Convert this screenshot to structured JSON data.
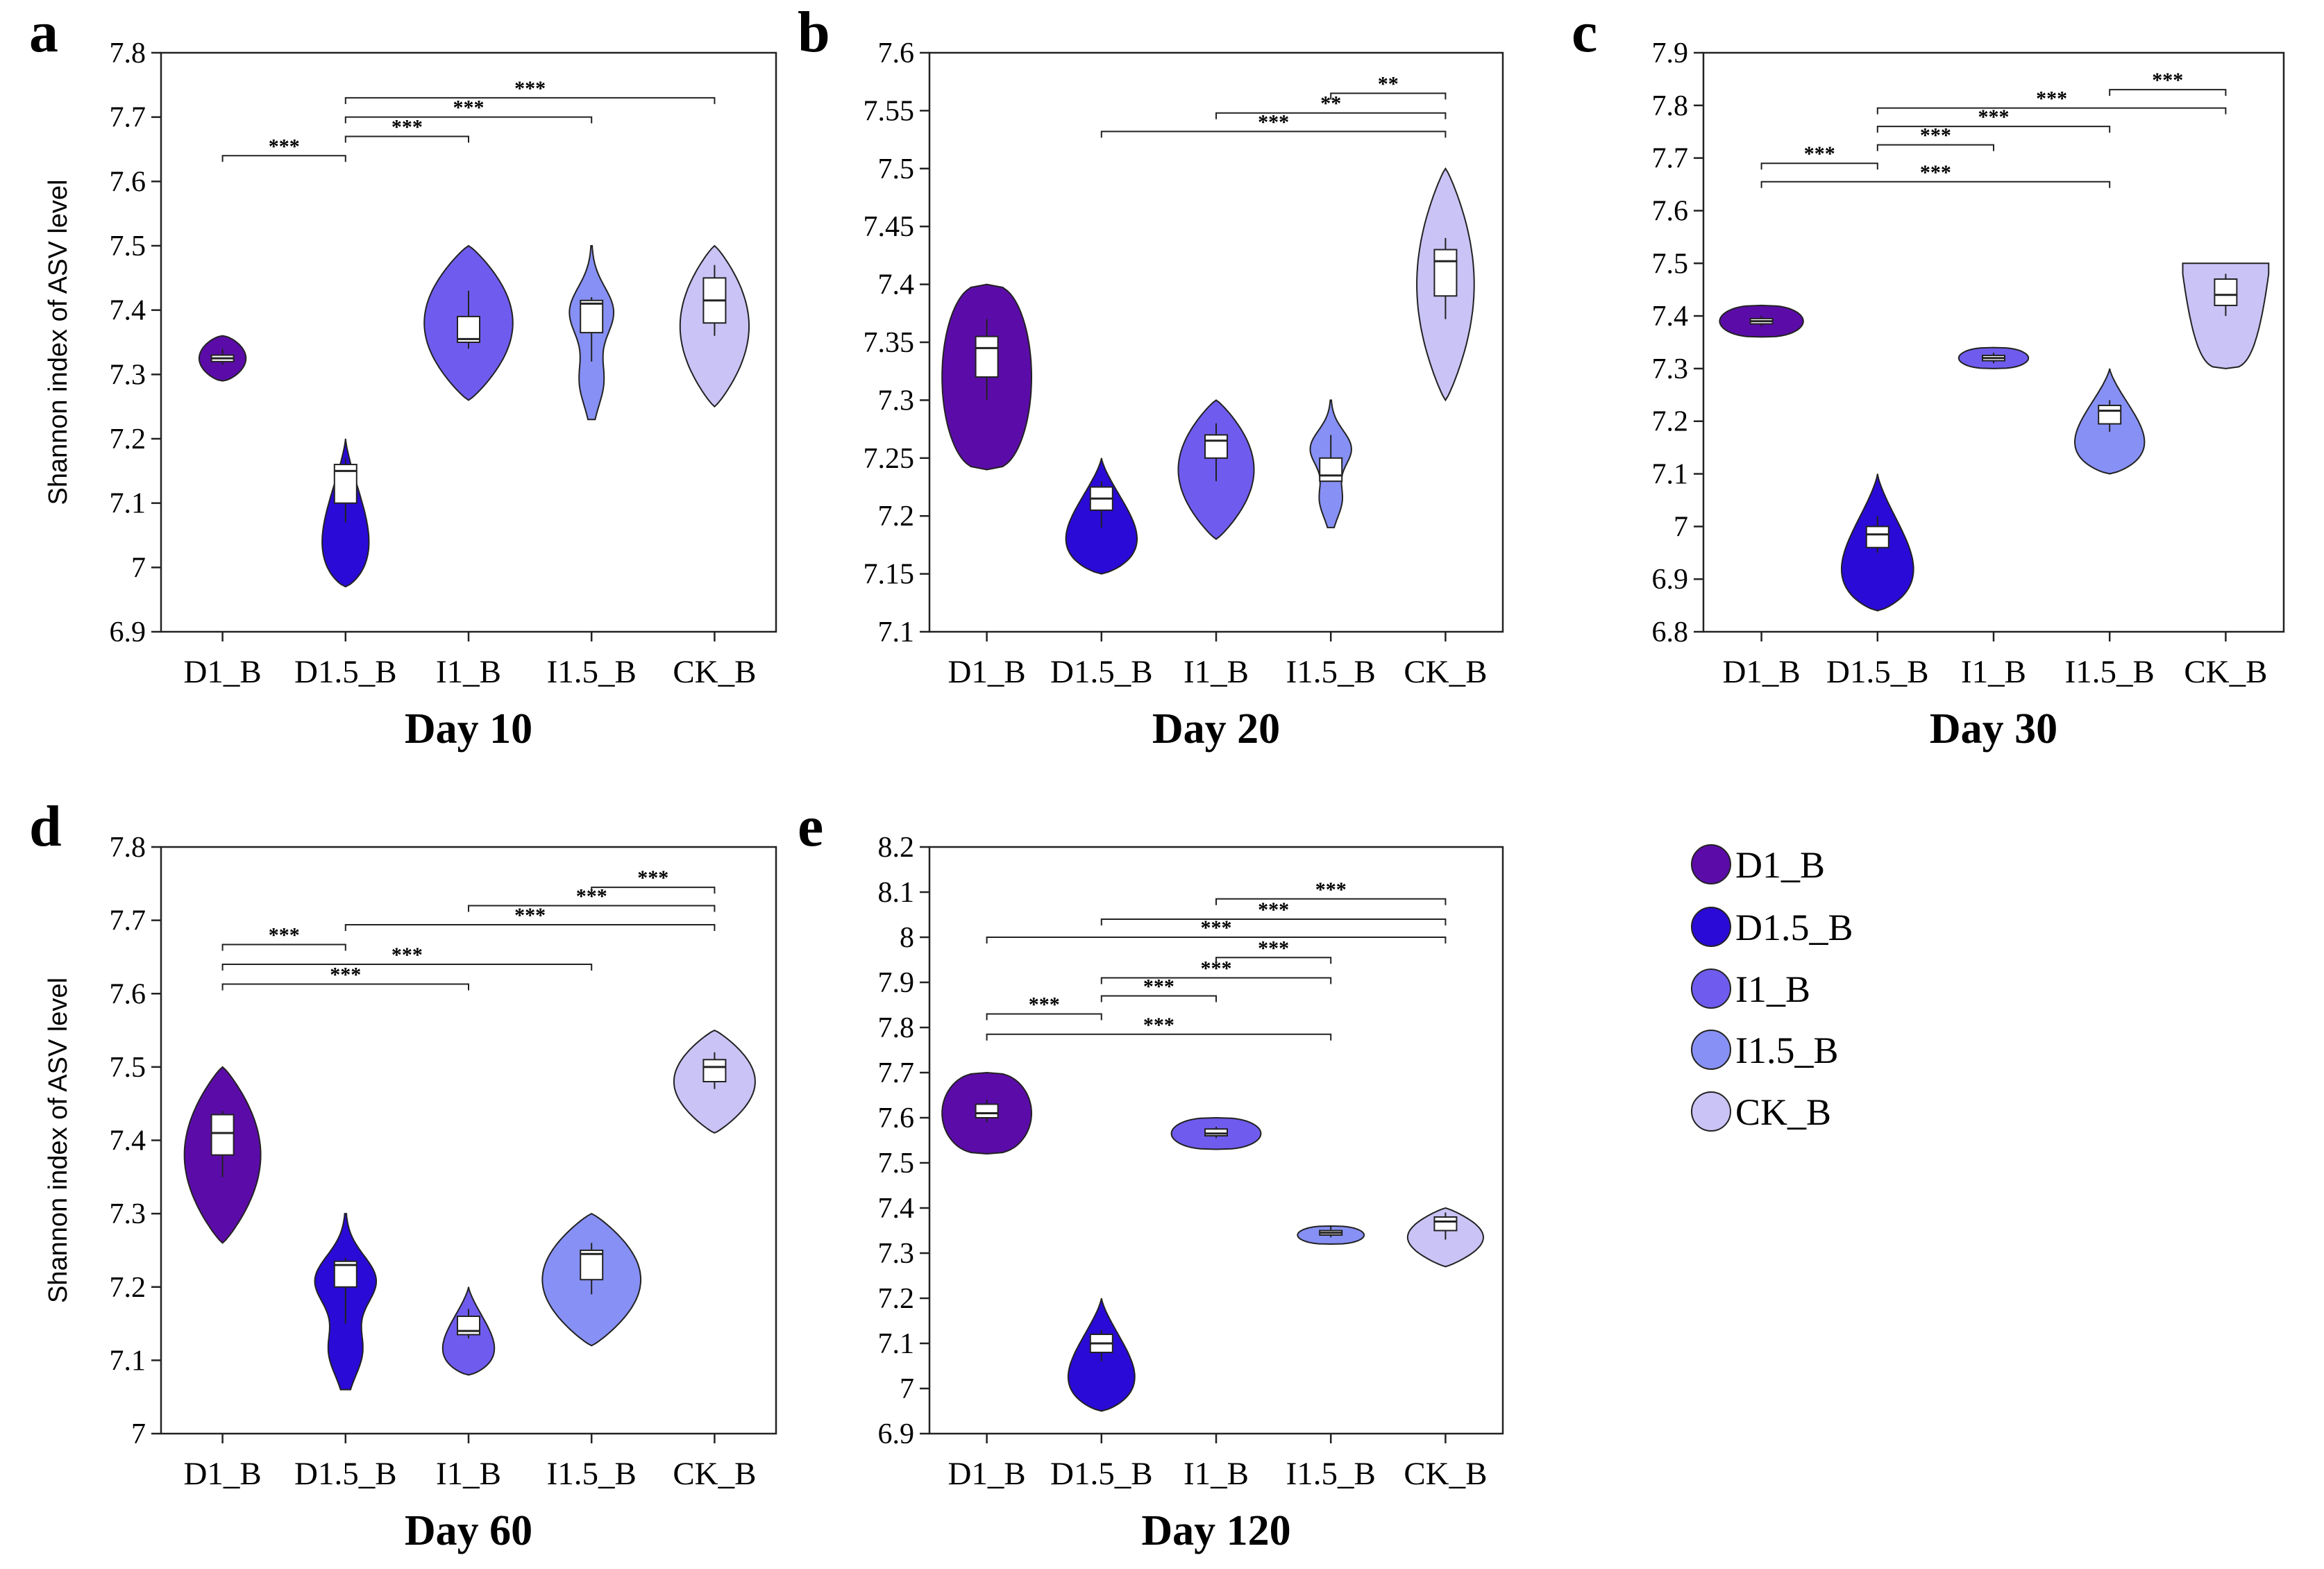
{
  "figure": {
    "ylabel": "Shannon index of ASV level",
    "groups": [
      "D1_B",
      "D1.5_B",
      "I1_B",
      "I1.5_B",
      "CK_B"
    ],
    "colors": {
      "D1_B": "#5b0ca8",
      "D1.5_B": "#2a0ad6",
      "I1_B": "#6f5cee",
      "I1.5_B": "#8790f4",
      "CK_B": "#c9c3f6"
    }
  },
  "legend": [
    {
      "label": "D1_B",
      "color": "#5b0ca8"
    },
    {
      "label": "D1.5_B",
      "color": "#2a0ad6"
    },
    {
      "label": "I1_B",
      "color": "#6f5cee"
    },
    {
      "label": "I1.5_B",
      "color": "#8790f4"
    },
    {
      "label": "CK_B",
      "color": "#c9c3f6"
    }
  ],
  "chart_data": [
    {
      "panel": "a",
      "type": "violin",
      "title": "Day 10",
      "ylabel": "Shannon index of ASV level",
      "ylim": [
        6.9,
        7.8
      ],
      "yticks": [
        "6.9",
        "7",
        "7.1",
        "7.2",
        "7.3",
        "7.4",
        "7.5",
        "7.6",
        "7.7",
        "7.8"
      ],
      "categories": [
        "D1_B",
        "D1.5_B",
        "I1_B",
        "I1.5_B",
        "CK_B"
      ],
      "series": [
        {
          "name": "D1_B",
          "vmin": 7.29,
          "vmax": 7.36,
          "maxw": 0.38,
          "shape": "s",
          "q1": 7.32,
          "median": 7.325,
          "q3": 7.33,
          "wlo": 7.315,
          "whi": 7.34
        },
        {
          "name": "D1.5_B",
          "vmin": 6.97,
          "vmax": 7.2,
          "maxw": 0.38,
          "shape": "tear",
          "q1": 7.1,
          "median": 7.15,
          "q3": 7.16,
          "wlo": 7.07,
          "whi": 7.17
        },
        {
          "name": "I1_B",
          "vmin": 7.26,
          "vmax": 7.5,
          "maxw": 0.72,
          "shape": "round",
          "q1": 7.35,
          "median": 7.355,
          "q3": 7.39,
          "wlo": 7.34,
          "whi": 7.43
        },
        {
          "name": "I1.5_B",
          "vmin": 7.23,
          "vmax": 7.5,
          "maxw": 0.36,
          "shape": "bimodal",
          "q1": 7.365,
          "median": 7.41,
          "q3": 7.415,
          "wlo": 7.32,
          "whi": 7.42
        },
        {
          "name": "CK_B",
          "vmin": 7.25,
          "vmax": 7.5,
          "maxw": 0.56,
          "shape": "round",
          "q1": 7.38,
          "median": 7.415,
          "q3": 7.45,
          "wlo": 7.36,
          "whi": 7.47
        }
      ],
      "brackets": [
        {
          "from": "D1_B",
          "to": "D1.5_B",
          "y": 7.64,
          "label": "***"
        },
        {
          "from": "D1.5_B",
          "to": "I1_B",
          "y": 7.67,
          "label": "***"
        },
        {
          "from": "D1.5_B",
          "to": "I1.5_B",
          "y": 7.7,
          "label": "***"
        },
        {
          "from": "D1.5_B",
          "to": "CK_B",
          "y": 7.73,
          "label": "***"
        }
      ]
    },
    {
      "panel": "b",
      "type": "violin",
      "title": "Day 20",
      "ylim": [
        7.1,
        7.6
      ],
      "yticks": [
        "7.1",
        "7.15",
        "7.2",
        "7.25",
        "7.3",
        "7.35",
        "7.4",
        "7.45",
        "7.5",
        "7.55",
        "7.6"
      ],
      "categories": [
        "D1_B",
        "D1.5_B",
        "I1_B",
        "I1.5_B",
        "CK_B"
      ],
      "series": [
        {
          "name": "D1_B",
          "vmin": 7.24,
          "vmax": 7.4,
          "maxw": 0.78,
          "shape": "flat",
          "q1": 7.32,
          "median": 7.345,
          "q3": 7.355,
          "wlo": 7.3,
          "whi": 7.37
        },
        {
          "name": "D1.5_B",
          "vmin": 7.15,
          "vmax": 7.25,
          "maxw": 0.62,
          "shape": "tear",
          "q1": 7.205,
          "median": 7.215,
          "q3": 7.225,
          "wlo": 7.19,
          "whi": 7.23
        },
        {
          "name": "I1_B",
          "vmin": 7.18,
          "vmax": 7.3,
          "maxw": 0.66,
          "shape": "round",
          "q1": 7.25,
          "median": 7.265,
          "q3": 7.27,
          "wlo": 7.23,
          "whi": 7.28
        },
        {
          "name": "I1.5_B",
          "vmin": 7.19,
          "vmax": 7.3,
          "maxw": 0.36,
          "shape": "bimodal",
          "q1": 7.23,
          "median": 7.235,
          "q3": 7.25,
          "wlo": 7.23,
          "whi": 7.27
        },
        {
          "name": "CK_B",
          "vmin": 7.3,
          "vmax": 7.5,
          "maxw": 0.5,
          "shape": "round",
          "q1": 7.39,
          "median": 7.42,
          "q3": 7.43,
          "wlo": 7.37,
          "whi": 7.44
        }
      ],
      "brackets": [
        {
          "from": "D1.5_B",
          "to": "CK_B",
          "y": 7.532,
          "label": "***"
        },
        {
          "from": "I1_B",
          "to": "CK_B",
          "y": 7.548,
          "label": "**"
        },
        {
          "from": "I1.5_B",
          "to": "CK_B",
          "y": 7.565,
          "label": "**"
        }
      ]
    },
    {
      "panel": "c",
      "type": "violin",
      "title": "Day 30",
      "ylim": [
        6.8,
        7.9
      ],
      "yticks": [
        "6.8",
        "6.9",
        "7",
        "7.1",
        "7.2",
        "7.3",
        "7.4",
        "7.5",
        "7.6",
        "7.7",
        "7.8",
        "7.9"
      ],
      "categories": [
        "D1_B",
        "D1.5_B",
        "I1_B",
        "I1.5_B",
        "CK_B"
      ],
      "series": [
        {
          "name": "D1_B",
          "vmin": 7.36,
          "vmax": 7.42,
          "maxw": 0.72,
          "shape": "flat",
          "q1": 7.385,
          "median": 7.39,
          "q3": 7.395,
          "wlo": 7.38,
          "whi": 7.4
        },
        {
          "name": "D1.5_B",
          "vmin": 6.84,
          "vmax": 7.1,
          "maxw": 0.62,
          "shape": "tear",
          "q1": 6.96,
          "median": 6.985,
          "q3": 7.0,
          "wlo": 6.95,
          "whi": 7.02
        },
        {
          "name": "I1_B",
          "vmin": 7.3,
          "vmax": 7.34,
          "maxw": 0.6,
          "shape": "flat",
          "q1": 7.315,
          "median": 7.32,
          "q3": 7.325,
          "wlo": 7.31,
          "whi": 7.33
        },
        {
          "name": "I1.5_B",
          "vmin": 7.1,
          "vmax": 7.3,
          "maxw": 0.6,
          "shape": "tear",
          "q1": 7.195,
          "median": 7.22,
          "q3": 7.23,
          "wlo": 7.18,
          "whi": 7.24
        },
        {
          "name": "CK_B",
          "vmin": 7.3,
          "vmax": 7.5,
          "maxw": 0.74,
          "shape": "flattop",
          "q1": 7.42,
          "median": 7.44,
          "q3": 7.47,
          "wlo": 7.4,
          "whi": 7.48
        }
      ],
      "brackets": [
        {
          "from": "D1_B",
          "to": "I1.5_B",
          "y": 7.655,
          "label": "***"
        },
        {
          "from": "D1_B",
          "to": "D1.5_B",
          "y": 7.69,
          "label": "***"
        },
        {
          "from": "D1.5_B",
          "to": "I1_B",
          "y": 7.725,
          "label": "***"
        },
        {
          "from": "D1.5_B",
          "to": "I1.5_B",
          "y": 7.76,
          "label": "***"
        },
        {
          "from": "D1.5_B",
          "to": "CK_B",
          "y": 7.795,
          "label": "***"
        },
        {
          "from": "I1.5_B",
          "to": "CK_B",
          "y": 7.83,
          "label": "***"
        }
      ]
    },
    {
      "panel": "d",
      "type": "violin",
      "title": "Day 60",
      "ylabel": "Shannon index of ASV level",
      "ylim": [
        7.0,
        7.8
      ],
      "yticks": [
        "7",
        "7.1",
        "7.2",
        "7.3",
        "7.4",
        "7.5",
        "7.6",
        "7.7",
        "7.8"
      ],
      "categories": [
        "D1_B",
        "D1.5_B",
        "I1_B",
        "I1.5_B",
        "CK_B"
      ],
      "series": [
        {
          "name": "D1_B",
          "vmin": 7.26,
          "vmax": 7.5,
          "maxw": 0.62,
          "shape": "round",
          "q1": 7.38,
          "median": 7.41,
          "q3": 7.435,
          "wlo": 7.35,
          "whi": 7.44
        },
        {
          "name": "D1.5_B",
          "vmin": 7.06,
          "vmax": 7.3,
          "maxw": 0.5,
          "shape": "bimodal",
          "q1": 7.2,
          "median": 7.23,
          "q3": 7.235,
          "wlo": 7.15,
          "whi": 7.24
        },
        {
          "name": "I1_B",
          "vmin": 7.08,
          "vmax": 7.2,
          "maxw": 0.42,
          "shape": "tear",
          "q1": 7.135,
          "median": 7.14,
          "q3": 7.16,
          "wlo": 7.13,
          "whi": 7.17
        },
        {
          "name": "I1.5_B",
          "vmin": 7.12,
          "vmax": 7.3,
          "maxw": 0.8,
          "shape": "round",
          "q1": 7.21,
          "median": 7.245,
          "q3": 7.25,
          "wlo": 7.19,
          "whi": 7.26
        },
        {
          "name": "CK_B",
          "vmin": 7.41,
          "vmax": 7.55,
          "maxw": 0.66,
          "shape": "round",
          "q1": 7.48,
          "median": 7.5,
          "q3": 7.51,
          "wlo": 7.47,
          "whi": 7.52
        }
      ],
      "brackets": [
        {
          "from": "D1_B",
          "to": "I1_B",
          "y": 7.613,
          "label": "***"
        },
        {
          "from": "D1_B",
          "to": "I1.5_B",
          "y": 7.64,
          "label": "***"
        },
        {
          "from": "D1_B",
          "to": "D1.5_B",
          "y": 7.667,
          "label": "***"
        },
        {
          "from": "D1.5_B",
          "to": "CK_B",
          "y": 7.694,
          "label": "***"
        },
        {
          "from": "I1_B",
          "to": "CK_B",
          "y": 7.72,
          "label": "***"
        },
        {
          "from": "I1.5_B",
          "to": "CK_B",
          "y": 7.745,
          "label": "***"
        }
      ]
    },
    {
      "panel": "e",
      "type": "violin",
      "title": "Day 120",
      "ylim": [
        6.9,
        8.2
      ],
      "yticks": [
        "6.9",
        "7",
        "7.1",
        "7.2",
        "7.3",
        "7.4",
        "7.5",
        "7.6",
        "7.7",
        "7.8",
        "7.9",
        "8",
        "8.1",
        "8.2"
      ],
      "categories": [
        "D1_B",
        "D1.5_B",
        "I1_B",
        "I1.5_B",
        "CK_B"
      ],
      "series": [
        {
          "name": "D1_B",
          "vmin": 7.52,
          "vmax": 7.7,
          "maxw": 0.78,
          "shape": "flat",
          "q1": 7.6,
          "median": 7.61,
          "q3": 7.63,
          "wlo": 7.59,
          "whi": 7.64
        },
        {
          "name": "D1.5_B",
          "vmin": 6.95,
          "vmax": 7.2,
          "maxw": 0.58,
          "shape": "tear",
          "q1": 7.08,
          "median": 7.1,
          "q3": 7.12,
          "wlo": 7.06,
          "whi": 7.13
        },
        {
          "name": "I1_B",
          "vmin": 7.53,
          "vmax": 7.6,
          "maxw": 0.78,
          "shape": "flat",
          "q1": 7.56,
          "median": 7.565,
          "q3": 7.575,
          "wlo": 7.555,
          "whi": 7.58
        },
        {
          "name": "I1.5_B",
          "vmin": 7.32,
          "vmax": 7.36,
          "maxw": 0.58,
          "shape": "flat",
          "q1": 7.34,
          "median": 7.345,
          "q3": 7.35,
          "wlo": 7.335,
          "whi": 7.36
        },
        {
          "name": "CK_B",
          "vmin": 7.27,
          "vmax": 7.4,
          "maxw": 0.66,
          "shape": "round",
          "q1": 7.35,
          "median": 7.37,
          "q3": 7.38,
          "wlo": 7.33,
          "whi": 7.39
        }
      ],
      "brackets": [
        {
          "from": "D1_B",
          "to": "I1.5_B",
          "y": 7.785,
          "label": "***"
        },
        {
          "from": "D1_B",
          "to": "D1.5_B",
          "y": 7.83,
          "label": "***"
        },
        {
          "from": "D1.5_B",
          "to": "I1_B",
          "y": 7.87,
          "label": "***"
        },
        {
          "from": "D1.5_B",
          "to": "I1.5_B",
          "y": 7.91,
          "label": "***"
        },
        {
          "from": "I1_B",
          "to": "I1.5_B",
          "y": 7.955,
          "label": "***"
        },
        {
          "from": "D1_B",
          "to": "CK_B",
          "y": 8.0,
          "label": "***"
        },
        {
          "from": "D1.5_B",
          "to": "CK_B",
          "y": 8.04,
          "label": "***"
        },
        {
          "from": "I1_B",
          "to": "CK_B",
          "y": 8.085,
          "label": "***"
        }
      ]
    }
  ]
}
